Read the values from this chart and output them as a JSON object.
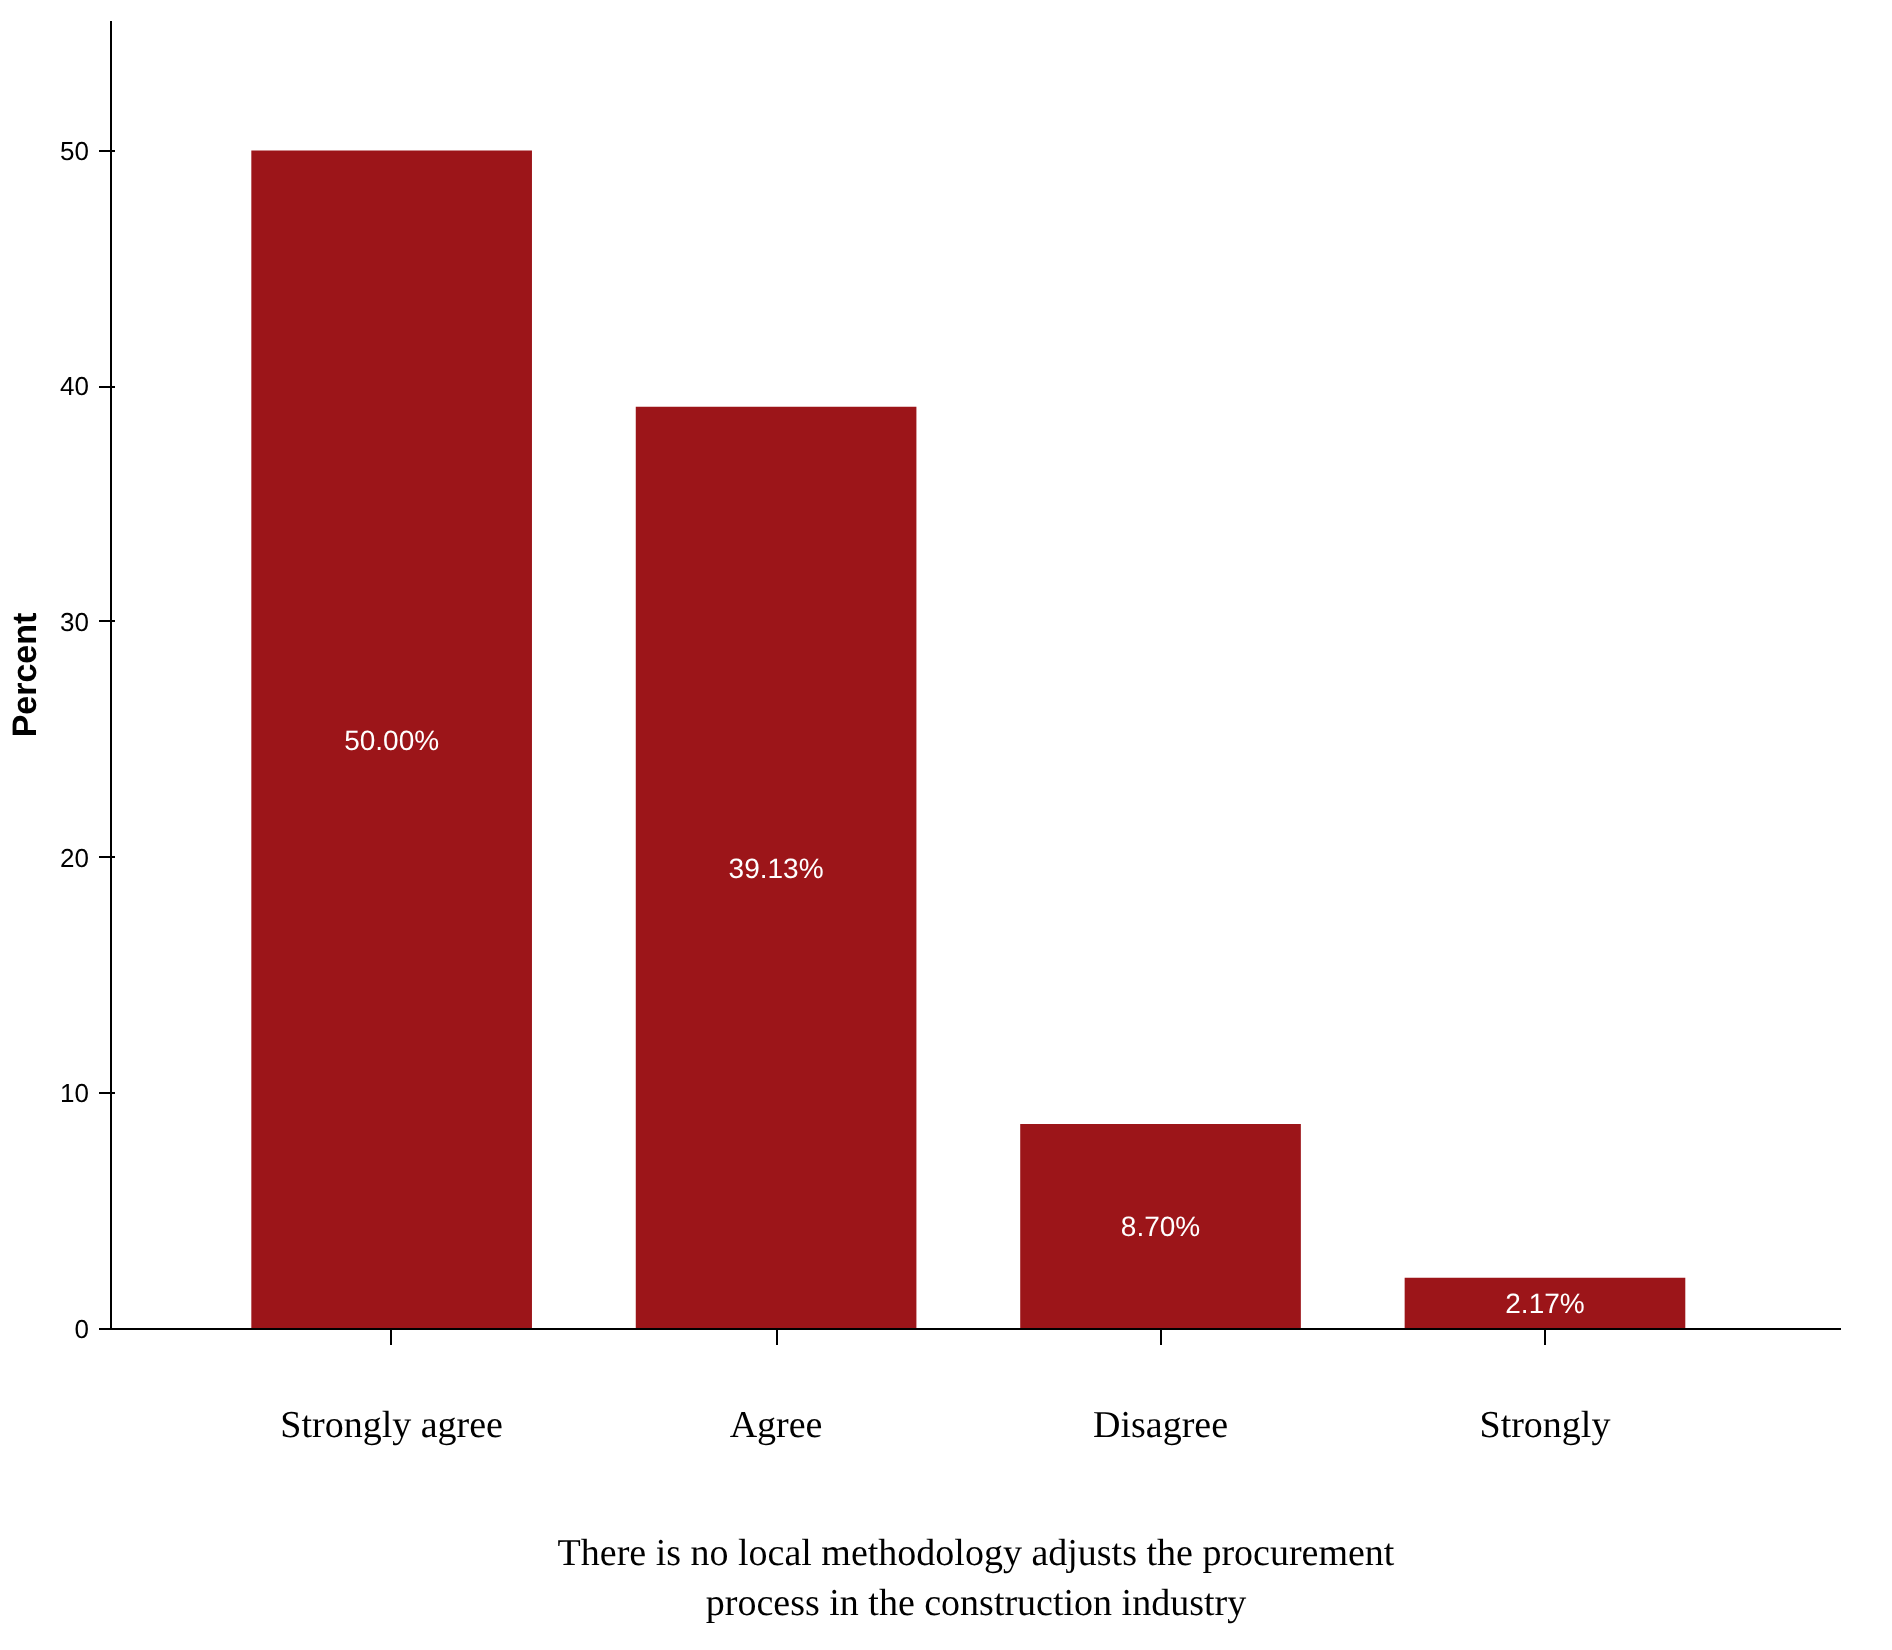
{
  "chart_data": {
    "type": "bar",
    "ylabel": "Percent",
    "xlabel": "There is no local methodology adjusts the procurement\nprocess in the construction industry",
    "categories": [
      "Strongly agree",
      "Agree",
      "Disagree",
      "Strongly"
    ],
    "values": [
      50.0,
      39.13,
      8.7,
      2.17
    ],
    "value_labels": [
      "50.00%",
      "39.13%",
      "8.70%",
      "2.17%"
    ],
    "color": "#9c1519",
    "ylim": [
      0,
      55.5
    ],
    "yticks": [
      0,
      10,
      20,
      30,
      40,
      50
    ],
    "grid": false
  }
}
